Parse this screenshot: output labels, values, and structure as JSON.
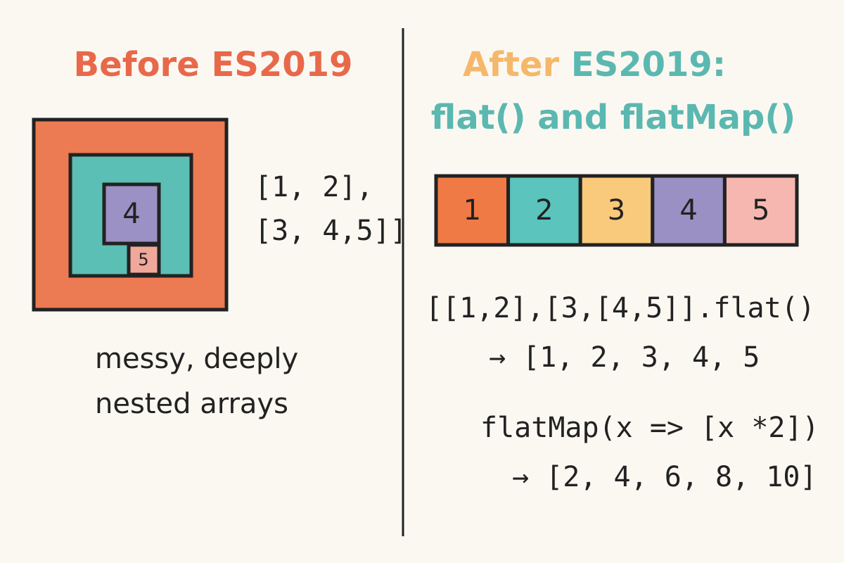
{
  "left": {
    "title": "Before ES2019",
    "nested_labels": [
      "4",
      "5"
    ],
    "code_lines": [
      "[1, 2],",
      "[3, 4,5]]"
    ],
    "caption_lines": [
      "messy, deeply",
      "nested arrays"
    ]
  },
  "right": {
    "title_parts": [
      "After",
      "ES2019:"
    ],
    "subtitle": "flat() and flatMap()",
    "cells": [
      "1",
      "2",
      "3",
      "4",
      "5"
    ],
    "code_lines": [
      "[[1,2],[3,[4,5]].flat()",
      "→ [1, 2, 3, 4, 5",
      "flatMap(x => [x *2])",
      "→ [2, 4, 6, 8, 10]"
    ]
  }
}
